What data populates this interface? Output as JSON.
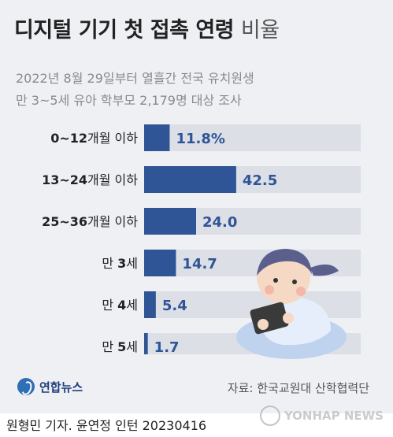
{
  "title_main": "디지털 기기 첫 접촉 연령",
  "title_light": "비율",
  "subtitle_line1": "2022년 8월 29일부터 열흘간 전국 유치원생",
  "subtitle_line2": "만 3~5세 유아 학부모 2,179명 대상 조사",
  "chart_data": {
    "type": "bar",
    "orientation": "horizontal",
    "categories": [
      {
        "bold": "0~12",
        "rest": "개월 이하"
      },
      {
        "bold": "13~24",
        "rest": "개월 이하"
      },
      {
        "bold": "25~36",
        "rest": "개월 이하"
      },
      {
        "bold": "3",
        "pre": "만 ",
        "rest": "세"
      },
      {
        "bold": "4",
        "pre": "만 ",
        "rest": "세"
      },
      {
        "bold": "5",
        "pre": "만 ",
        "rest": "세"
      }
    ],
    "values": [
      11.8,
      42.5,
      24.0,
      14.7,
      5.4,
      1.7
    ],
    "value_labels": [
      "11.8%",
      "42.5",
      "24.0",
      "14.7",
      "5.4",
      "1.7"
    ],
    "unit": "%",
    "xlim": [
      0,
      100
    ],
    "bar_color": "#2f5597",
    "track_color": "#dcdfe6"
  },
  "logo_text": "연합뉴스",
  "source": "자료: 한국교원대 산학협력단",
  "footer": "원형민 기자. 윤연정 인턴  20230416",
  "watermark_text": "YONHAP NEWS"
}
